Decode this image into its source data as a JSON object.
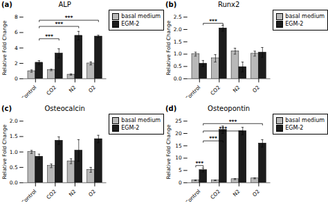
{
  "chart_data": [
    {
      "type": "bar",
      "title": "ALP",
      "annotations": [
        {
          "text": "(a)"
        },
        {
          "text": "***",
          "from": {
            "category": "Control",
            "series": "EGM-2"
          },
          "to": {
            "category": "CO2",
            "series": "EGM-2"
          },
          "y": 5.2
        },
        {
          "text": "***",
          "from": {
            "category": "Control",
            "series": "EGM-2"
          },
          "to": {
            "category": "N2",
            "series": "EGM-2"
          },
          "y": 6.8
        },
        {
          "text": "***",
          "from": {
            "category": "Control",
            "series": "EGM-2"
          },
          "to": {
            "category": "O2",
            "series": "EGM-2"
          },
          "y": 7.6
        }
      ],
      "ylabel": "Relative Fold Change",
      "categories": [
        "Control",
        "CO2",
        "N2",
        "O2"
      ],
      "series": [
        {
          "name": "basal medium",
          "color": "#b8b8b8",
          "values": [
            1.0,
            1.15,
            0.55,
            2.0
          ],
          "errors": [
            0.15,
            0.1,
            0.08,
            0.2
          ]
        },
        {
          "name": "EGM-2",
          "color": "#1c1c1c",
          "values": [
            2.1,
            3.3,
            5.6,
            5.5
          ],
          "errors": [
            0.25,
            0.6,
            0.55,
            0.15
          ]
        }
      ],
      "ylim": [
        0,
        8
      ],
      "yticks": [
        0,
        2,
        4,
        6,
        8
      ],
      "legend": "right",
      "grid": false
    },
    {
      "type": "bar",
      "title": "Runx2",
      "annotations": [
        {
          "text": "(b)"
        },
        {
          "text": "***",
          "from": {
            "category": "Control",
            "series": "EGM-2"
          },
          "to": {
            "category": "CO2",
            "series": "EGM-2"
          },
          "y": 2.25
        }
      ],
      "ylabel": "Relative Fold Change",
      "categories": [
        "Control",
        "CO2",
        "N2",
        "O2"
      ],
      "series": [
        {
          "name": "basal medium",
          "color": "#b8b8b8",
          "values": [
            1.0,
            0.83,
            1.12,
            1.02
          ],
          "errors": [
            0.08,
            0.15,
            0.12,
            0.1
          ]
        },
        {
          "name": "EGM-2",
          "color": "#1c1c1c",
          "values": [
            0.62,
            2.05,
            0.48,
            1.07
          ],
          "errors": [
            0.12,
            0.12,
            0.2,
            0.2
          ]
        }
      ],
      "ylim": [
        0,
        2.5
      ],
      "yticks": [
        {
          "value": 0,
          "label": "0.0"
        },
        0.5,
        {
          "value": 1,
          "label": "1.0"
        },
        1.5,
        {
          "value": 2,
          "label": "2.0"
        },
        2.5
      ],
      "legend": "right",
      "grid": false
    },
    {
      "type": "bar",
      "title": "Osteocalcin",
      "annotations": [
        {
          "text": "(c)"
        }
      ],
      "ylabel": "Relative Fold Change",
      "categories": [
        "Control",
        "CO2",
        "N2",
        "O2"
      ],
      "series": [
        {
          "name": "basal medium",
          "color": "#b8b8b8",
          "values": [
            1.0,
            0.55,
            0.7,
            0.42
          ],
          "errors": [
            0.05,
            0.06,
            0.08,
            0.08
          ]
        },
        {
          "name": "EGM-2",
          "color": "#1c1c1c",
          "values": [
            0.85,
            1.37,
            1.05,
            1.42
          ],
          "errors": [
            0.08,
            0.12,
            0.35,
            0.12
          ]
        }
      ],
      "ylim": [
        0,
        2.0
      ],
      "yticks": [
        {
          "value": 0,
          "label": "0.0"
        },
        0.5,
        {
          "value": 1,
          "label": "1.0"
        },
        1.5,
        {
          "value": 2,
          "label": "2.0"
        }
      ],
      "legend": "right",
      "grid": false
    },
    {
      "type": "bar",
      "title": "Osteopontin",
      "annotations": [
        {
          "text": "(d)"
        },
        {
          "text": "***",
          "from": {
            "category": "Control",
            "series": "EGM-2"
          },
          "to": {
            "category": "CO2",
            "series": "EGM-2"
          },
          "y": 17.0
        },
        {
          "text": "***",
          "from": {
            "category": "Control",
            "series": "EGM-2"
          },
          "to": {
            "category": "N2",
            "series": "EGM-2"
          },
          "y": 21.0
        },
        {
          "text": "***",
          "from": {
            "category": "Control",
            "series": "EGM-2"
          },
          "to": {
            "category": "O2",
            "series": "EGM-2"
          },
          "y": 24.0
        },
        {
          "text": "***",
          "from": {
            "category": "Control",
            "series": "basal medium"
          },
          "to": {
            "category": "Control",
            "series": "EGM-2"
          },
          "y": 7.0
        }
      ],
      "ylabel": "Relative Fold Change",
      "categories": [
        "Control",
        "CO2",
        "N2",
        "O2"
      ],
      "series": [
        {
          "name": "basal medium",
          "color": "#b8b8b8",
          "values": [
            1.0,
            1.0,
            1.5,
            1.8
          ],
          "errors": [
            0.15,
            0.1,
            0.2,
            0.2
          ]
        },
        {
          "name": "EGM-2",
          "color": "#1c1c1c",
          "values": [
            5.2,
            21.5,
            21.0,
            16.0
          ],
          "errors": [
            0.8,
            1.5,
            1.5,
            1.5
          ]
        }
      ],
      "ylim": [
        0,
        25
      ],
      "yticks": [
        0,
        5,
        10,
        15,
        20,
        25
      ],
      "legend": "right",
      "grid": false
    }
  ]
}
